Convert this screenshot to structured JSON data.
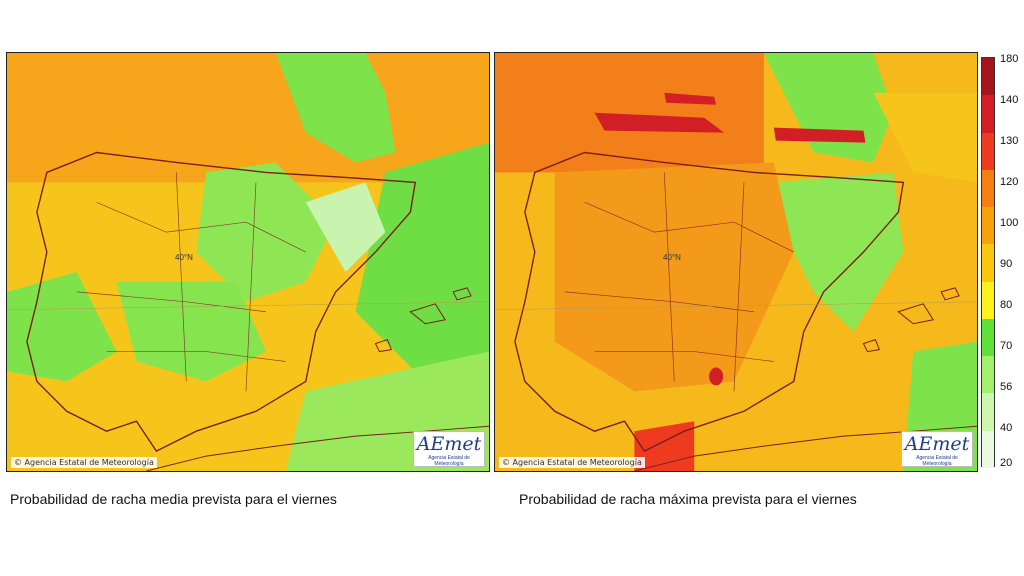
{
  "maps": [
    {
      "title": "Probabilidad de racha media prevista para el viernes",
      "credit": "Agencia Estatal de Meteorología",
      "grid_label": "40°N",
      "logo": "AEmet",
      "logo_sub": "Agencia Estatal de Meteorología"
    },
    {
      "title": "Probabilidad de racha máxima prevista para el viernes",
      "credit": "Agencia Estatal de Meteorología",
      "grid_label": "40°N",
      "logo": "AEmet",
      "logo_sub": "Agencia Estatal de Meteorología"
    }
  ],
  "legend": {
    "ticks": [
      "180",
      "140",
      "130",
      "120",
      "100",
      "90",
      "80",
      "70",
      "56",
      "40",
      "20"
    ],
    "colors": [
      "#a8141b",
      "#d21f26",
      "#ee3b20",
      "#f57f10",
      "#f7a20d",
      "#f9c80e",
      "#fff21c",
      "#5fe13a",
      "#a2f06c",
      "#cdf7ad",
      "#e8fbe0"
    ]
  },
  "colors": {
    "sea_left": "#f5d62a",
    "sea_right": "#f5b91c",
    "land_outline": "#7a1e1e"
  }
}
